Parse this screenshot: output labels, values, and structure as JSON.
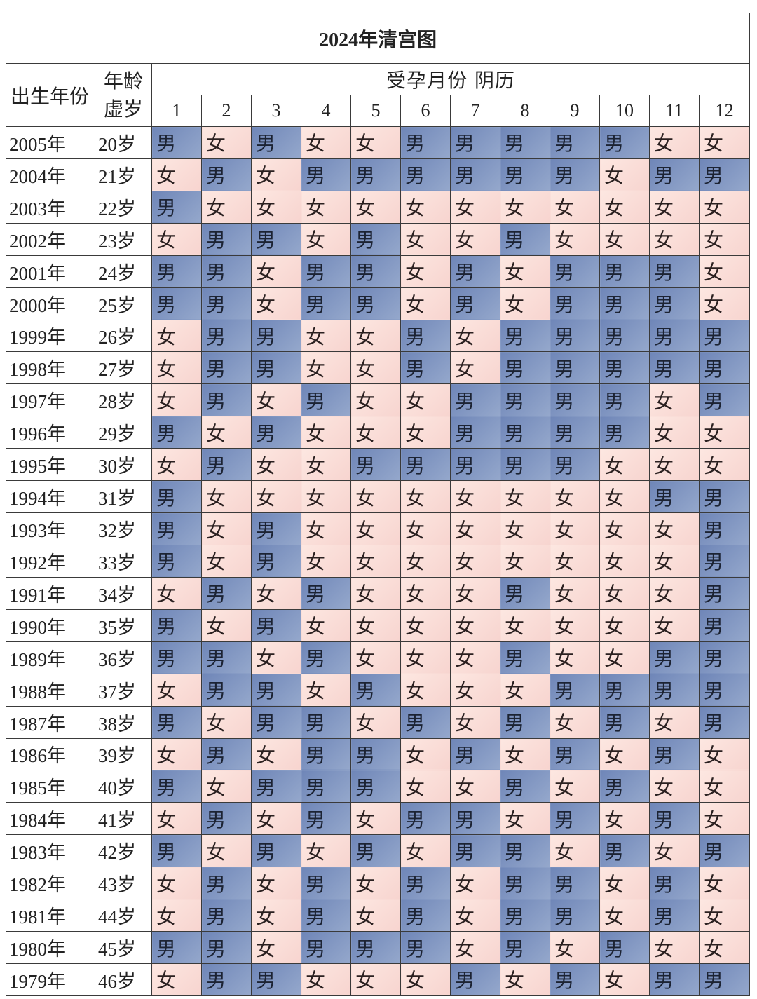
{
  "title": "2024年清宫图",
  "header": {
    "birth_year": "出生年份",
    "age": "年龄\n虚岁",
    "conception": "受孕月份  阴历",
    "months": [
      "1",
      "2",
      "3",
      "4",
      "5",
      "6",
      "7",
      "8",
      "9",
      "10",
      "11",
      "12"
    ]
  },
  "genders": {
    "M": "男",
    "F": "女"
  },
  "colors": {
    "male": "#7b90bf",
    "female": "#fbdcd6"
  },
  "rows": [
    {
      "year": "2005年",
      "age": "20岁",
      "cells": [
        "男",
        "女",
        "男",
        "女",
        "女",
        "男",
        "男",
        "男",
        "男",
        "男",
        "女",
        "女"
      ]
    },
    {
      "year": "2004年",
      "age": "21岁",
      "cells": [
        "女",
        "男",
        "女",
        "男",
        "男",
        "男",
        "男",
        "男",
        "男",
        "女",
        "男",
        "男"
      ]
    },
    {
      "year": "2003年",
      "age": "22岁",
      "cells": [
        "男",
        "女",
        "女",
        "女",
        "女",
        "女",
        "女",
        "女",
        "女",
        "女",
        "女",
        "女"
      ]
    },
    {
      "year": "2002年",
      "age": "23岁",
      "cells": [
        "女",
        "男",
        "男",
        "女",
        "男",
        "女",
        "女",
        "男",
        "女",
        "女",
        "女",
        "女"
      ]
    },
    {
      "year": "2001年",
      "age": "24岁",
      "cells": [
        "男",
        "男",
        "女",
        "男",
        "男",
        "女",
        "男",
        "女",
        "男",
        "男",
        "男",
        "女"
      ]
    },
    {
      "year": "2000年",
      "age": "25岁",
      "cells": [
        "男",
        "男",
        "女",
        "男",
        "男",
        "女",
        "男",
        "女",
        "男",
        "男",
        "男",
        "女"
      ]
    },
    {
      "year": "1999年",
      "age": "26岁",
      "cells": [
        "女",
        "男",
        "男",
        "女",
        "女",
        "男",
        "女",
        "男",
        "男",
        "男",
        "男",
        "男"
      ]
    },
    {
      "year": "1998年",
      "age": "27岁",
      "cells": [
        "女",
        "男",
        "男",
        "女",
        "女",
        "男",
        "女",
        "男",
        "男",
        "男",
        "男",
        "男"
      ]
    },
    {
      "year": "1997年",
      "age": "28岁",
      "cells": [
        "女",
        "男",
        "女",
        "男",
        "女",
        "女",
        "男",
        "男",
        "男",
        "男",
        "女",
        "男"
      ]
    },
    {
      "year": "1996年",
      "age": "29岁",
      "cells": [
        "男",
        "女",
        "男",
        "女",
        "女",
        "女",
        "男",
        "男",
        "男",
        "男",
        "女",
        "女"
      ]
    },
    {
      "year": "1995年",
      "age": "30岁",
      "cells": [
        "女",
        "男",
        "女",
        "女",
        "男",
        "男",
        "男",
        "男",
        "男",
        "女",
        "女",
        "女"
      ]
    },
    {
      "year": "1994年",
      "age": "31岁",
      "cells": [
        "男",
        "女",
        "女",
        "女",
        "女",
        "女",
        "女",
        "女",
        "女",
        "女",
        "男",
        "男"
      ]
    },
    {
      "year": "1993年",
      "age": "32岁",
      "cells": [
        "男",
        "女",
        "男",
        "女",
        "女",
        "女",
        "女",
        "女",
        "女",
        "女",
        "女",
        "男"
      ]
    },
    {
      "year": "1992年",
      "age": "33岁",
      "cells": [
        "男",
        "女",
        "男",
        "女",
        "女",
        "女",
        "女",
        "女",
        "女",
        "女",
        "女",
        "男"
      ]
    },
    {
      "year": "1991年",
      "age": "34岁",
      "cells": [
        "女",
        "男",
        "女",
        "男",
        "女",
        "女",
        "女",
        "男",
        "女",
        "女",
        "女",
        "男"
      ]
    },
    {
      "year": "1990年",
      "age": "35岁",
      "cells": [
        "男",
        "女",
        "男",
        "女",
        "女",
        "女",
        "女",
        "女",
        "女",
        "女",
        "女",
        "男"
      ]
    },
    {
      "year": "1989年",
      "age": "36岁",
      "cells": [
        "男",
        "男",
        "女",
        "男",
        "女",
        "女",
        "女",
        "男",
        "女",
        "女",
        "男",
        "男"
      ]
    },
    {
      "year": "1988年",
      "age": "37岁",
      "cells": [
        "女",
        "男",
        "男",
        "女",
        "男",
        "女",
        "女",
        "女",
        "男",
        "男",
        "男",
        "男"
      ]
    },
    {
      "year": "1987年",
      "age": "38岁",
      "cells": [
        "男",
        "女",
        "男",
        "男",
        "女",
        "男",
        "女",
        "男",
        "女",
        "男",
        "女",
        "男"
      ]
    },
    {
      "year": "1986年",
      "age": "39岁",
      "cells": [
        "女",
        "男",
        "女",
        "男",
        "男",
        "女",
        "男",
        "女",
        "男",
        "女",
        "男",
        "女"
      ]
    },
    {
      "year": "1985年",
      "age": "40岁",
      "cells": [
        "男",
        "女",
        "男",
        "男",
        "男",
        "女",
        "女",
        "男",
        "女",
        "男",
        "女",
        "女"
      ]
    },
    {
      "year": "1984年",
      "age": "41岁",
      "cells": [
        "女",
        "男",
        "女",
        "男",
        "女",
        "男",
        "男",
        "女",
        "男",
        "女",
        "男",
        "女"
      ]
    },
    {
      "year": "1983年",
      "age": "42岁",
      "cells": [
        "男",
        "女",
        "男",
        "女",
        "男",
        "女",
        "男",
        "男",
        "女",
        "男",
        "女",
        "男"
      ]
    },
    {
      "year": "1982年",
      "age": "43岁",
      "cells": [
        "女",
        "男",
        "女",
        "男",
        "女",
        "男",
        "女",
        "男",
        "男",
        "女",
        "男",
        "女"
      ]
    },
    {
      "year": "1981年",
      "age": "44岁",
      "cells": [
        "女",
        "男",
        "女",
        "男",
        "女",
        "男",
        "女",
        "男",
        "男",
        "女",
        "男",
        "女"
      ]
    },
    {
      "year": "1980年",
      "age": "45岁",
      "cells": [
        "男",
        "男",
        "女",
        "男",
        "男",
        "男",
        "女",
        "男",
        "女",
        "男",
        "女",
        "女"
      ]
    },
    {
      "year": "1979年",
      "age": "46岁",
      "cells": [
        "女",
        "男",
        "男",
        "女",
        "女",
        "女",
        "男",
        "女",
        "男",
        "女",
        "男",
        "男"
      ]
    }
  ]
}
